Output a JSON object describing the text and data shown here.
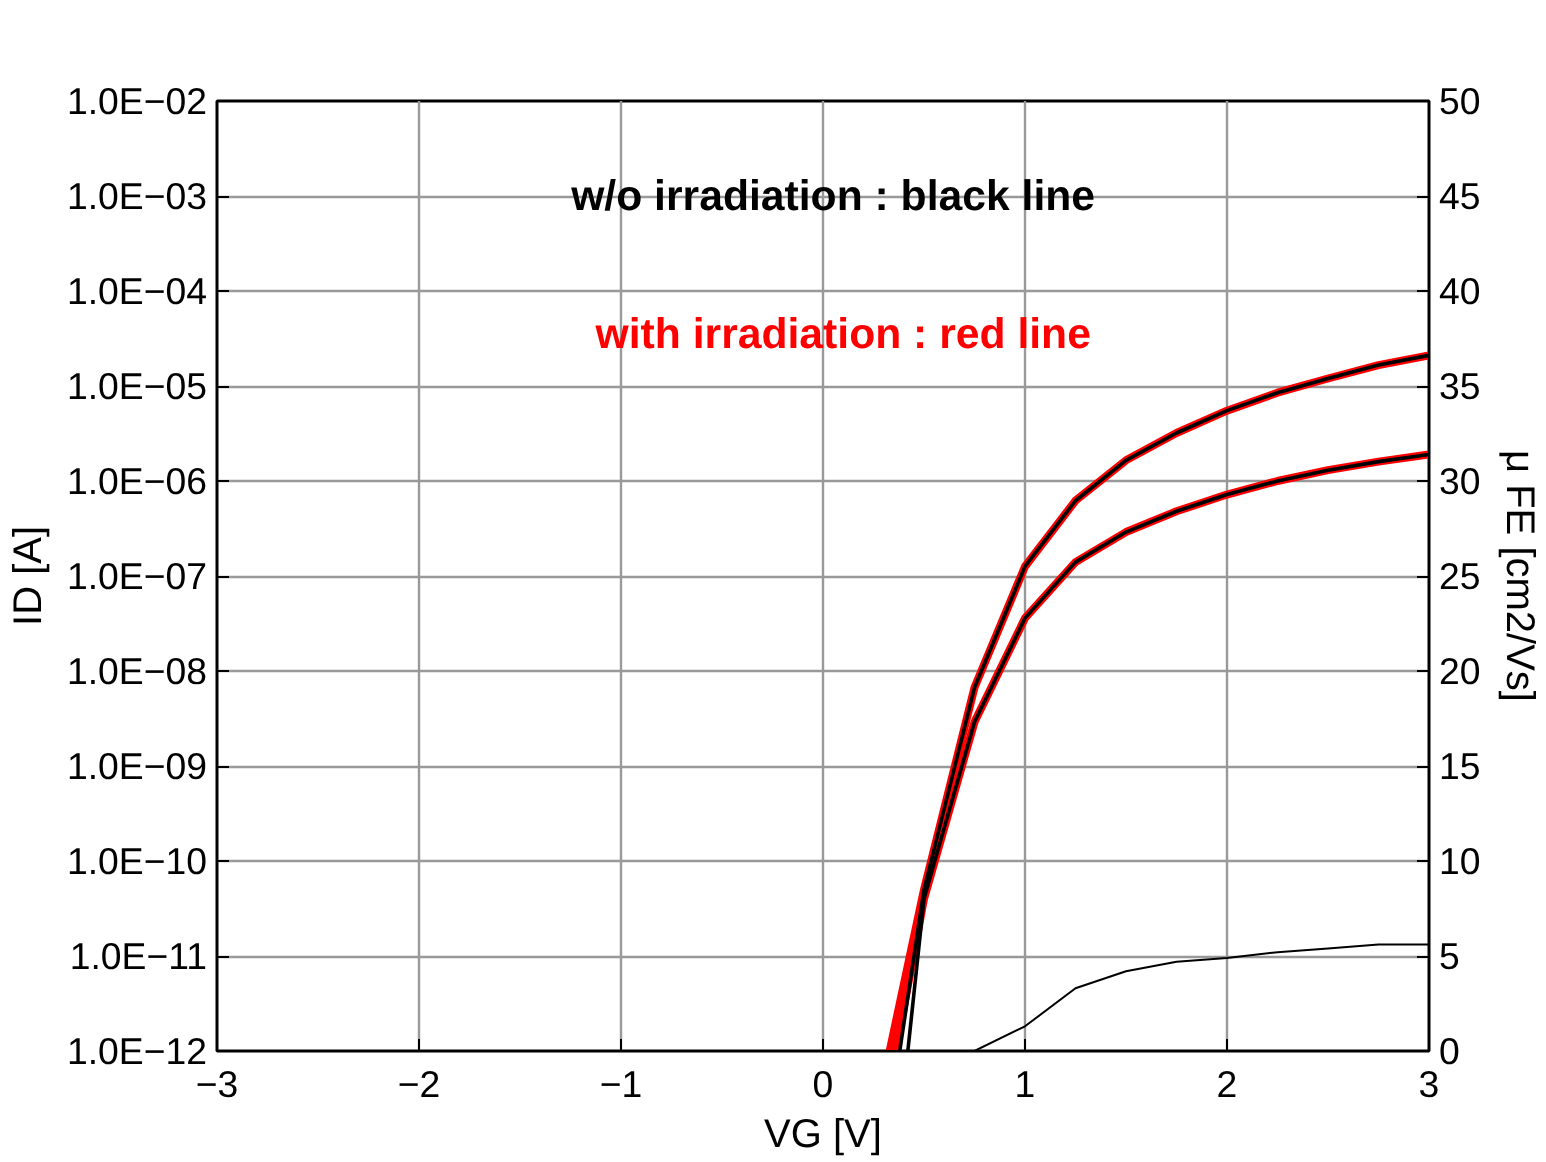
{
  "chart_data": {
    "type": "line",
    "xlabel": "VG [V]",
    "ylabel": "ID [A]",
    "y2label": "μ FE [cm2/Vs]",
    "log": "y",
    "grid": true,
    "line_style": "solid",
    "annotations": [
      "w/o irradiation : black line",
      "with irradiation : red line"
    ],
    "xlim": [
      -3,
      3
    ],
    "xticks": [
      {
        "value": -3,
        "label": "−3"
      },
      {
        "value": -2,
        "label": "−2"
      },
      {
        "value": -1,
        "label": "−1"
      },
      0,
      1,
      2,
      3
    ],
    "ylim": [
      1e-12,
      0.01
    ],
    "yticks": [
      {
        "value": 1e-12,
        "label": "1.0E−12"
      },
      {
        "value": 1e-11,
        "label": "1.0E−11"
      },
      {
        "value": 1e-10,
        "label": "1.0E−10"
      },
      {
        "value": 1e-09,
        "label": "1.0E−09"
      },
      {
        "value": 1e-08,
        "label": "1.0E−08"
      },
      {
        "value": 1e-07,
        "label": "1.0E−07"
      },
      {
        "value": 1e-06,
        "label": "1.0E−06"
      },
      {
        "value": 1e-05,
        "label": "1.0E−05"
      },
      {
        "value": 0.0001,
        "label": "1.0E−04"
      },
      {
        "value": 0.001,
        "label": "1.0E−03"
      },
      {
        "value": 0.01,
        "label": "1.0E−02"
      }
    ],
    "y2lim": [
      0,
      50
    ],
    "y2ticks": [
      0,
      5,
      10,
      15,
      20,
      25,
      30,
      35,
      40,
      45,
      50
    ],
    "series": [
      {
        "color": "#ff0000",
        "x": [
          0.33,
          0.5,
          0.75,
          1.0,
          1.25,
          1.5,
          1.75,
          2.0,
          2.25,
          2.5,
          2.75,
          3.0
        ],
        "values": [
          1e-12,
          5e-11,
          6.7e-09,
          1.26e-07,
          6.2e-07,
          1.65e-06,
          3.2e-06,
          5.5e-06,
          8.5e-06,
          1.2e-05,
          1.66e-05,
          2.1e-05
        ]
      },
      {
        "color": "#ff0000",
        "x": [
          0.36,
          0.5,
          0.75,
          1.0,
          1.25,
          1.5,
          1.75,
          2.0,
          2.25,
          2.5,
          2.75,
          3.0
        ],
        "values": [
          1e-12,
          4e-11,
          2.9e-09,
          3.6e-08,
          1.4e-07,
          2.9e-07,
          4.8e-07,
          7.2e-07,
          1e-06,
          1.3e-06,
          1.6e-06,
          1.9e-06
        ]
      },
      {
        "color": "#000000",
        "x": [
          0.38,
          0.5,
          0.75,
          1.0,
          1.25,
          1.5,
          1.75,
          2.0,
          2.25,
          2.5,
          2.75,
          3.0
        ],
        "values": [
          1e-12,
          5e-11,
          6.7e-09,
          1.26e-07,
          6.2e-07,
          1.65e-06,
          3.2e-06,
          5.5e-06,
          8.5e-06,
          1.2e-05,
          1.66e-05,
          2.1e-05
        ]
      },
      {
        "color": "#000000",
        "x": [
          0.42,
          0.5,
          0.75,
          1.0,
          1.25,
          1.5,
          1.75,
          2.0,
          2.25,
          2.5,
          2.75,
          3.0
        ],
        "values": [
          1e-12,
          4e-11,
          2.9e-09,
          3.6e-08,
          1.4e-07,
          2.9e-07,
          4.8e-07,
          7.2e-07,
          1e-06,
          1.3e-06,
          1.6e-06,
          1.9e-06
        ]
      },
      {
        "color": "#000000",
        "axis": "y2",
        "x": [
          -3,
          -2,
          -1,
          0,
          0.5,
          0.75,
          1.0,
          1.25,
          1.5,
          1.75,
          2.0,
          2.25,
          2.5,
          2.75,
          3.0
        ],
        "values": [
          0,
          0,
          0,
          0,
          0,
          0,
          1.3,
          3.3,
          4.2,
          4.7,
          4.9,
          5.2,
          5.4,
          5.6,
          5.6
        ]
      }
    ]
  }
}
